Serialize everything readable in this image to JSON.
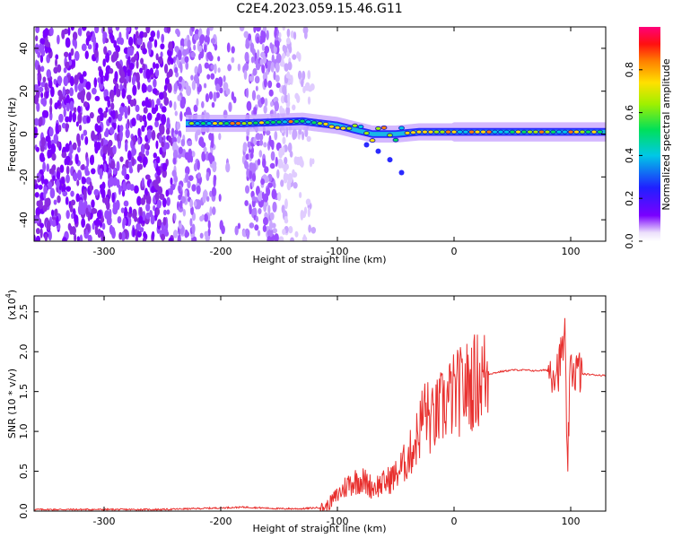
{
  "title": "C2E4.2023.059.15.46.G11",
  "chart_data": [
    {
      "type": "heatmap",
      "xlabel": "Height of straight line (km)",
      "ylabel": "Frequency (Hz)",
      "xlim": [
        -360,
        130
      ],
      "ylim": [
        -50,
        50
      ],
      "x_ticks": [
        "-300",
        "-200",
        "-100",
        "0",
        "100"
      ],
      "x_tick_values": [
        -300,
        -200,
        -100,
        0,
        100
      ],
      "y_ticks": [
        "40",
        "20",
        "0",
        "-20",
        "-40"
      ],
      "y_tick_values": [
        40,
        20,
        0,
        -20,
        -40
      ],
      "colorbar": {
        "label": "Normalized spectral amplitude",
        "range": [
          0,
          1
        ],
        "ticks": [
          "0.0",
          "0.2",
          "0.4",
          "0.6",
          "0.8"
        ],
        "tick_values": [
          0.0,
          0.2,
          0.4,
          0.6,
          0.8
        ],
        "colormap": "rainbow (purple-blue-cyan-green-yellow-red-magenta)"
      },
      "features": {
        "noise_region_x": [
          -360,
          -120
        ],
        "bright_band_center_freq": [
          [
            -230,
            5
          ],
          [
            -180,
            5
          ],
          [
            -130,
            6
          ],
          [
            -100,
            4
          ],
          [
            -70,
            0
          ],
          [
            -50,
            0
          ],
          [
            -30,
            1
          ],
          [
            0,
            1
          ],
          [
            50,
            1
          ],
          [
            100,
            1
          ],
          [
            130,
            1
          ]
        ]
      }
    },
    {
      "type": "line",
      "xlabel": "Height of straight line (km)",
      "ylabel": "SNR (10 * v/v)",
      "y_scale_label": "(x10",
      "y_scale_exp": "4",
      "y_scale_close": ")",
      "xlim": [
        -360,
        130
      ],
      "ylim": [
        0,
        2.7
      ],
      "x_ticks": [
        "-300",
        "-200",
        "-100",
        "0",
        "100"
      ],
      "x_tick_values": [
        -300,
        -200,
        -100,
        0,
        100
      ],
      "y_ticks": [
        "0.0",
        "0.5",
        "1.0",
        "1.5",
        "2.0",
        "2.5"
      ],
      "y_tick_values": [
        0.0,
        0.5,
        1.0,
        1.5,
        2.0,
        2.5
      ],
      "color": "#e8302e",
      "series": [
        {
          "x": [
            -360,
            -300,
            -250,
            -200,
            -180,
            -150,
            -130,
            -110,
            -100,
            -90,
            -80,
            -70,
            -60,
            -50,
            -40,
            -35,
            -30,
            -25,
            -20,
            -15,
            -10,
            -5,
            0,
            10,
            20,
            30,
            40,
            50,
            60,
            70,
            80,
            90,
            95,
            97,
            100,
            110,
            120,
            130
          ],
          "y": [
            0.02,
            0.02,
            0.02,
            0.04,
            0.05,
            0.03,
            0.03,
            0.05,
            0.2,
            0.35,
            0.4,
            0.3,
            0.35,
            0.45,
            0.65,
            0.8,
            1.0,
            1.3,
            1.1,
            1.2,
            1.3,
            1.4,
            1.45,
            1.55,
            1.65,
            1.72,
            1.75,
            1.77,
            1.77,
            1.76,
            1.77,
            1.8,
            2.2,
            0.5,
            1.8,
            1.72,
            1.71,
            1.7
          ]
        }
      ]
    }
  ]
}
